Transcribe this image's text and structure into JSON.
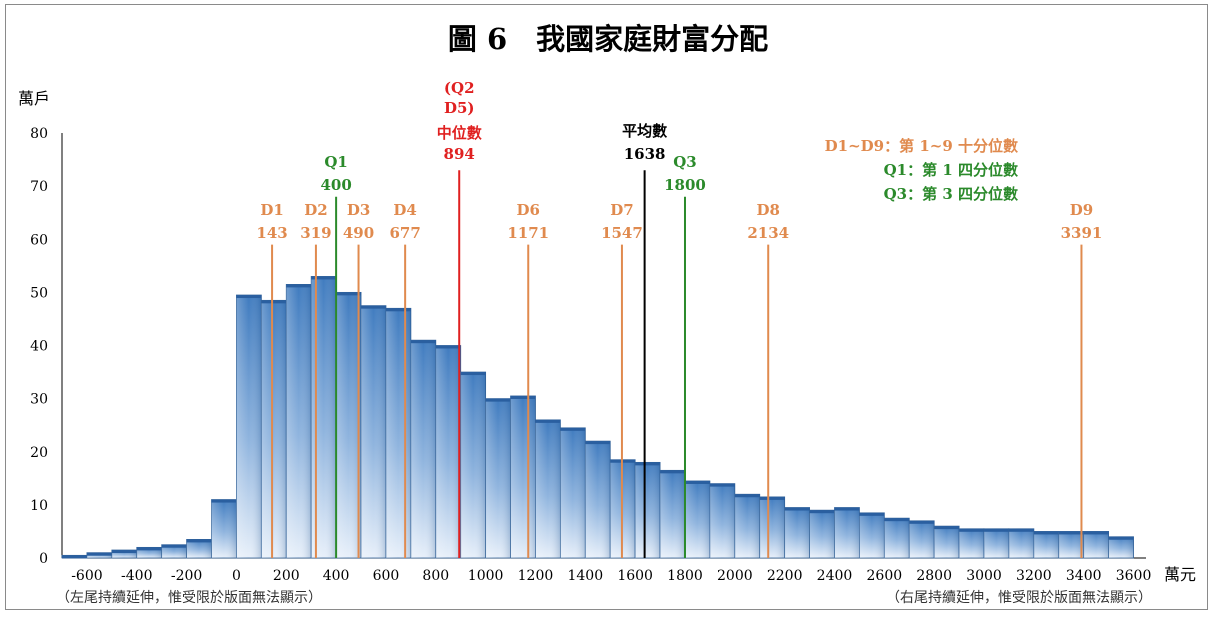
{
  "chart_data": {
    "type": "bar",
    "title": "圖 6　我國家庭財富分配",
    "ylabel": "萬戶",
    "xlabel": "萬元",
    "ylim": [
      0,
      80
    ],
    "yticks": [
      0,
      10,
      20,
      30,
      40,
      50,
      60,
      70,
      80
    ],
    "xticks": [
      -600,
      -400,
      -200,
      0,
      200,
      400,
      600,
      800,
      1000,
      1200,
      1400,
      1600,
      1800,
      2000,
      2200,
      2400,
      2600,
      2800,
      3000,
      3200,
      3400,
      3600
    ],
    "xlim": [
      -700,
      3650
    ],
    "bin_width": 100,
    "bins": [
      {
        "x0": -700,
        "value": 0.5
      },
      {
        "x0": -600,
        "value": 1
      },
      {
        "x0": -500,
        "value": 1.5
      },
      {
        "x0": -400,
        "value": 2
      },
      {
        "x0": -300,
        "value": 2.5
      },
      {
        "x0": -200,
        "value": 3.5
      },
      {
        "x0": -100,
        "value": 11
      },
      {
        "x0": 0,
        "value": 49.5
      },
      {
        "x0": 100,
        "value": 48.5
      },
      {
        "x0": 200,
        "value": 51.5
      },
      {
        "x0": 300,
        "value": 53
      },
      {
        "x0": 400,
        "value": 50
      },
      {
        "x0": 500,
        "value": 47.5
      },
      {
        "x0": 600,
        "value": 47
      },
      {
        "x0": 700,
        "value": 41
      },
      {
        "x0": 800,
        "value": 40
      },
      {
        "x0": 900,
        "value": 35
      },
      {
        "x0": 1000,
        "value": 30
      },
      {
        "x0": 1100,
        "value": 30.5
      },
      {
        "x0": 1200,
        "value": 26
      },
      {
        "x0": 1300,
        "value": 24.5
      },
      {
        "x0": 1400,
        "value": 22
      },
      {
        "x0": 1500,
        "value": 18.5
      },
      {
        "x0": 1600,
        "value": 18
      },
      {
        "x0": 1700,
        "value": 16.5
      },
      {
        "x0": 1800,
        "value": 14.5
      },
      {
        "x0": 1900,
        "value": 14
      },
      {
        "x0": 2000,
        "value": 12
      },
      {
        "x0": 2100,
        "value": 11.5
      },
      {
        "x0": 2200,
        "value": 9.5
      },
      {
        "x0": 2300,
        "value": 9
      },
      {
        "x0": 2400,
        "value": 9.5
      },
      {
        "x0": 2500,
        "value": 8.5
      },
      {
        "x0": 2600,
        "value": 7.5
      },
      {
        "x0": 2700,
        "value": 7
      },
      {
        "x0": 2800,
        "value": 6
      },
      {
        "x0": 2900,
        "value": 5.5
      },
      {
        "x0": 3000,
        "value": 5.5
      },
      {
        "x0": 3100,
        "value": 5.5
      },
      {
        "x0": 3200,
        "value": 5
      },
      {
        "x0": 3300,
        "value": 5
      },
      {
        "x0": 3400,
        "value": 5
      },
      {
        "x0": 3500,
        "value": 4
      }
    ],
    "markers": [
      {
        "name": "D1",
        "value": 143,
        "color": "#e08a4e",
        "line_to": 59
      },
      {
        "name": "D2",
        "value": 319,
        "color": "#e08a4e",
        "line_to": 59
      },
      {
        "name": "Q1",
        "value": 400,
        "color": "#2b8a2b",
        "line_to": 68
      },
      {
        "name": "D3",
        "value": 490,
        "color": "#e08a4e",
        "line_to": 59
      },
      {
        "name": "D4",
        "value": 677,
        "color": "#e08a4e",
        "line_to": 59
      },
      {
        "name": "中位數",
        "value": 894,
        "color": "#e02020",
        "line_to": 73
      },
      {
        "name": "D6",
        "value": 1171,
        "color": "#e08a4e",
        "line_to": 59
      },
      {
        "name": "D7",
        "value": 1547,
        "color": "#e08a4e",
        "line_to": 59
      },
      {
        "name": "平均數",
        "value": 1638,
        "color": "#000000",
        "line_to": 73
      },
      {
        "name": "Q3",
        "value": 1800,
        "color": "#2b8a2b",
        "line_to": 68
      },
      {
        "name": "D8",
        "value": 2134,
        "color": "#e08a4e",
        "line_to": 59
      },
      {
        "name": "D9",
        "value": 3391,
        "color": "#e08a4e",
        "line_to": 59
      }
    ],
    "median_tag": "(Q2\nD5)",
    "legend": [
      {
        "text": "D1~D9：第 1~9 十分位數",
        "color": "#e08a4e"
      },
      {
        "text": "Q1：第 1 四分位數",
        "color": "#2b8a2b"
      },
      {
        "text": "Q3：第 3 四分位數",
        "color": "#2b8a2b"
      }
    ],
    "legend_position": "top-right",
    "notes": {
      "left": "（左尾持續延伸，惟受限於版面無法顯示）",
      "right": "（右尾持續延伸，惟受限於版面無法顯示）"
    },
    "grid": false,
    "bar_color": "#4a86c8"
  }
}
